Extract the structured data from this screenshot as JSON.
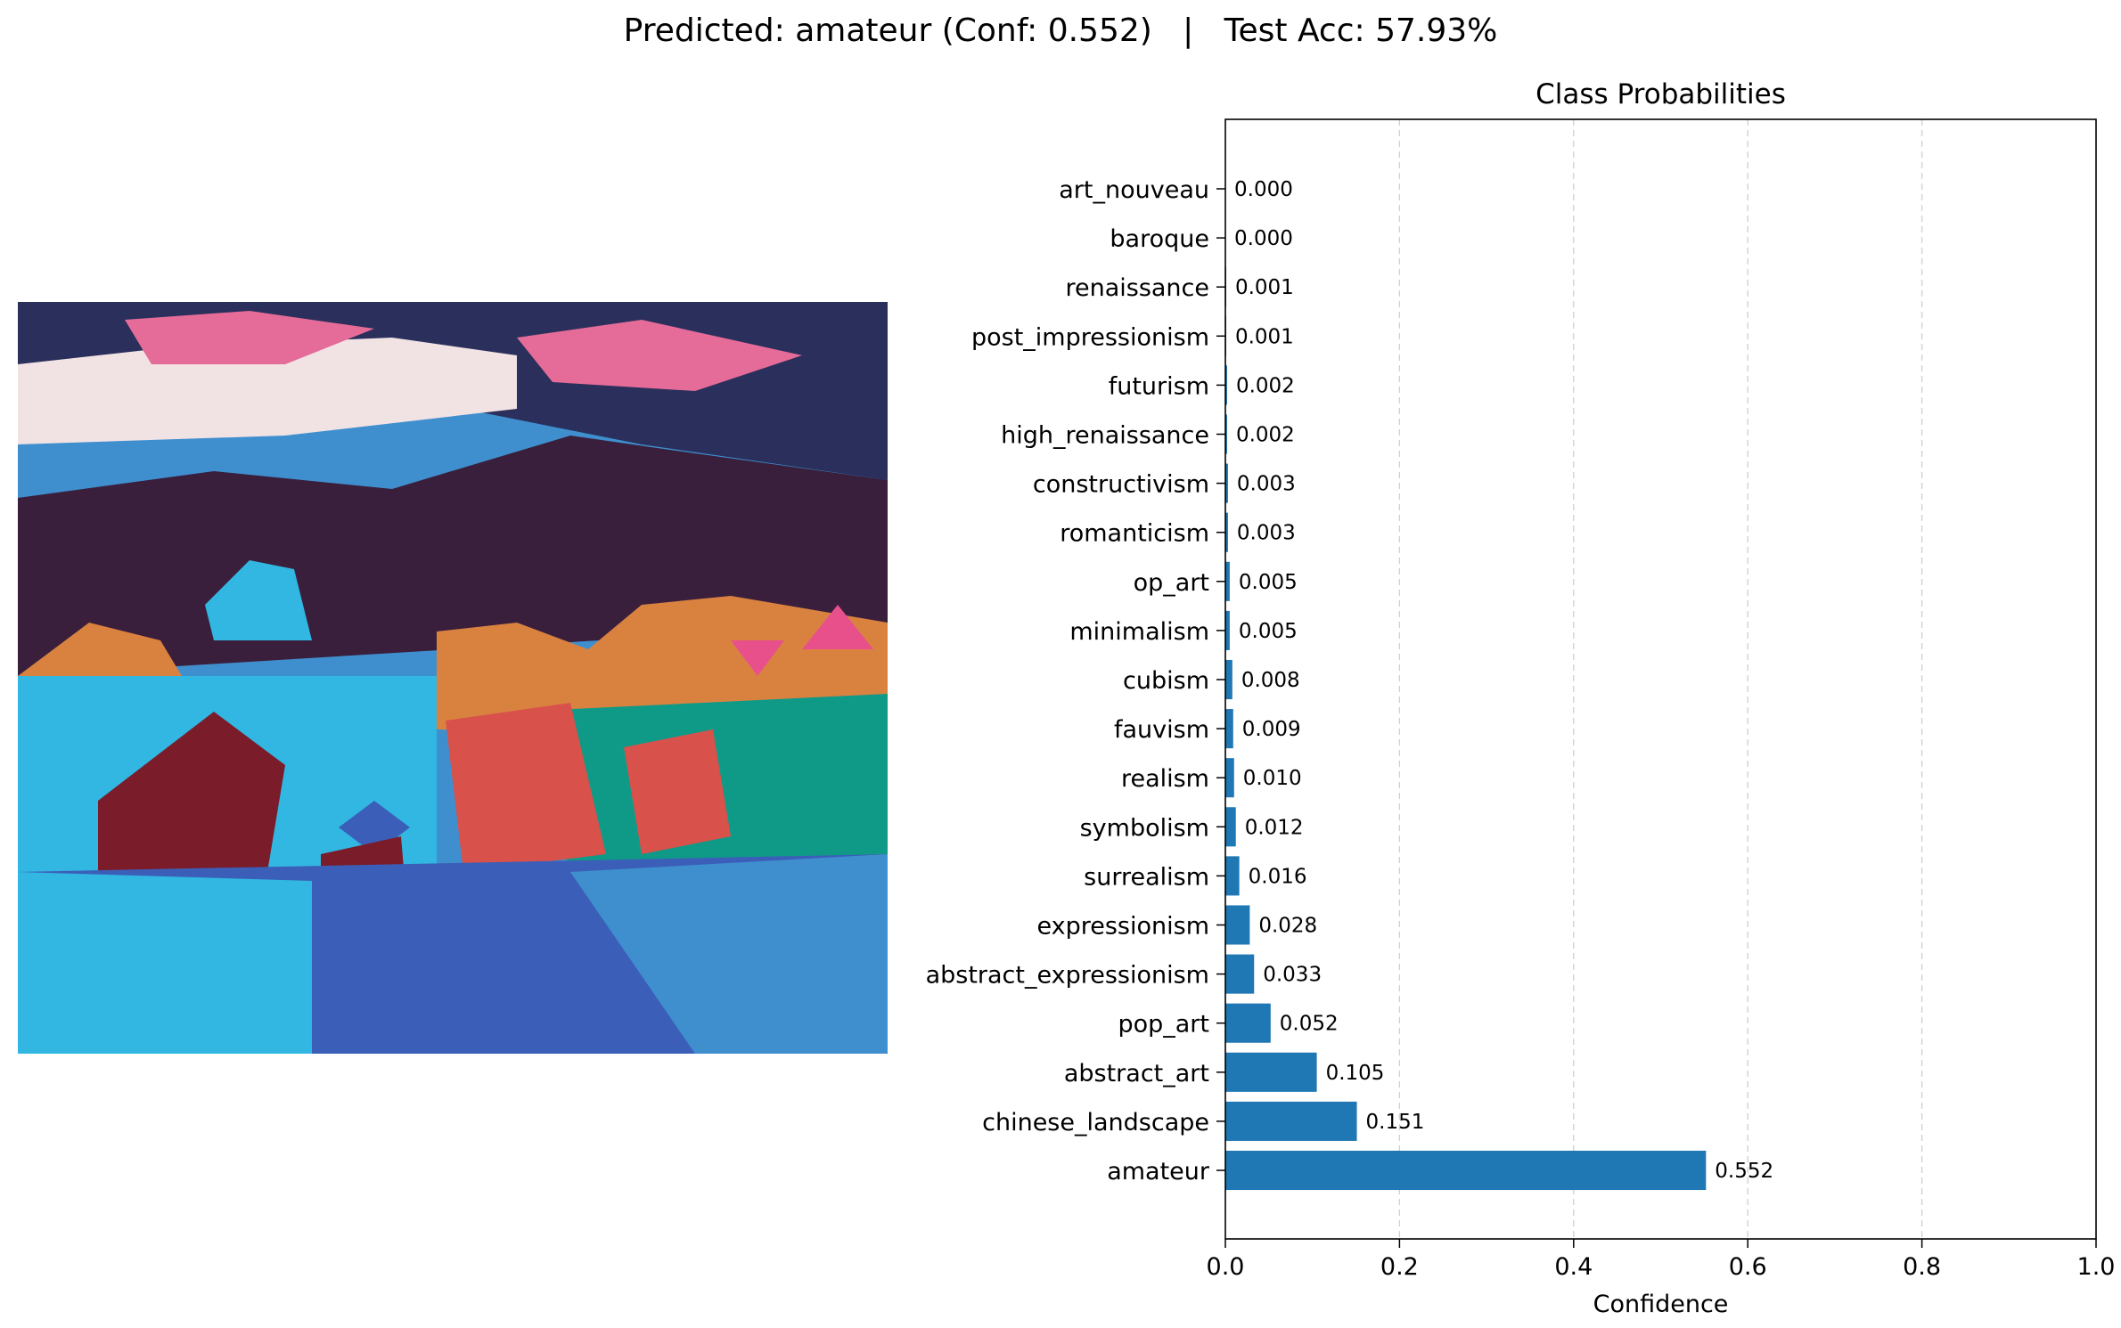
{
  "suptitle": "Predicted: amateur (Conf: 0.552)   |   Test Acc: 57.93%",
  "image": {
    "description_icon": "painting-image",
    "colors": {
      "sky_dark": "#2a2f5c",
      "sky_blue": "#3f8fcf",
      "cloud_pink": "#e56b98",
      "cloud_light": "#f1e2e4",
      "mountain": "#3a1f3c",
      "turquoise": "#31b7e2",
      "teal": "#0f9a87",
      "maroon": "#7a1c2a",
      "orange": "#d98240",
      "red": "#d8514b",
      "blue": "#3b5fb8",
      "pink": "#e8508b"
    }
  },
  "chart_data": {
    "type": "bar",
    "orientation": "horizontal",
    "title": "Class Probabilities",
    "xlabel": "Confidence",
    "ylabel": "",
    "xlim": [
      0,
      1.0
    ],
    "xticks": [
      "0.0",
      "0.2",
      "0.4",
      "0.6",
      "0.8",
      "1.0"
    ],
    "xtick_values": [
      0,
      0.2,
      0.4,
      0.6,
      0.8,
      1.0
    ],
    "grid": "x-dashed",
    "bar_color": "#1f77b4",
    "categories": [
      "art_nouveau",
      "baroque",
      "renaissance",
      "post_impressionism",
      "futurism",
      "high_renaissance",
      "constructivism",
      "romanticism",
      "op_art",
      "minimalism",
      "cubism",
      "fauvism",
      "realism",
      "symbolism",
      "surrealism",
      "expressionism",
      "abstract_expressionism",
      "pop_art",
      "abstract_art",
      "chinese_landscape",
      "amateur"
    ],
    "values": [
      0.0,
      0.0,
      0.001,
      0.001,
      0.002,
      0.002,
      0.003,
      0.003,
      0.005,
      0.005,
      0.008,
      0.009,
      0.01,
      0.012,
      0.016,
      0.028,
      0.033,
      0.052,
      0.105,
      0.151,
      0.552
    ],
    "value_labels": [
      "0.000",
      "0.000",
      "0.001",
      "0.001",
      "0.002",
      "0.002",
      "0.003",
      "0.003",
      "0.005",
      "0.005",
      "0.008",
      "0.009",
      "0.010",
      "0.012",
      "0.016",
      "0.028",
      "0.033",
      "0.052",
      "0.105",
      "0.151",
      "0.552"
    ]
  }
}
